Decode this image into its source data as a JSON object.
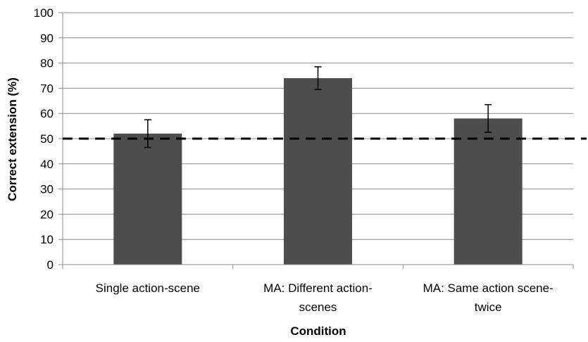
{
  "chart_data": {
    "type": "bar",
    "title": "",
    "xlabel": "Condition",
    "ylabel": "Correct extension (%)",
    "ylim": [
      0,
      100
    ],
    "yticks": [
      0,
      10,
      20,
      30,
      40,
      50,
      60,
      70,
      80,
      90,
      100
    ],
    "categories": [
      [
        "Single action-scene"
      ],
      [
        "MA: Different action-",
        "scenes"
      ],
      [
        "MA: Same action scene-",
        "twice"
      ]
    ],
    "values": [
      52,
      74,
      58
    ],
    "error_bars": [
      [
        46.5,
        57.5
      ],
      [
        69.5,
        78.5
      ],
      [
        52.5,
        63.5
      ]
    ],
    "reference_line": {
      "value": 50,
      "style": "dashed"
    },
    "grid": true,
    "bar_color": "#4d4d4d",
    "grid_color": "#8c8c8c"
  }
}
